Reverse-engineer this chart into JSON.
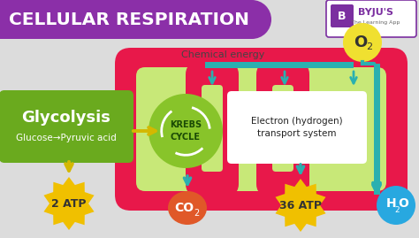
{
  "title": "CELLULAR RESPIRATION",
  "title_bg": "#8b2fa8",
  "title_color": "#ffffff",
  "bg_color": "#dcdcdc",
  "glycolysis_label": "Glycolysis",
  "glycolysis_sub": "Glucose→Pyruvic acid",
  "glycolysis_bg": "#6aaa1e",
  "krebs_label": "KREBS\nCYCLE",
  "krebs_bg": "#88c42a",
  "electron_label": "Electron (hydrogen)\ntransport system",
  "electron_bg": "#ffffff",
  "chemical_energy_label": "Chemical energy",
  "atp2_label": "2 ATP",
  "atp36_label": "36 ATP",
  "co2_label": "CO",
  "o2_label": "O",
  "h2o_label": "H",
  "mito_outer_color": "#e8184a",
  "mito_inner_bg": "#c8e878",
  "arrow_color": "#2ab0b0",
  "atp_blob_color": "#f0c000",
  "co2_color": "#e05828",
  "o2_color": "#f0e030",
  "h2o_color": "#28a8e0",
  "yellow_arrow": "#d4b800",
  "byju_bg": "#7b2fa0"
}
